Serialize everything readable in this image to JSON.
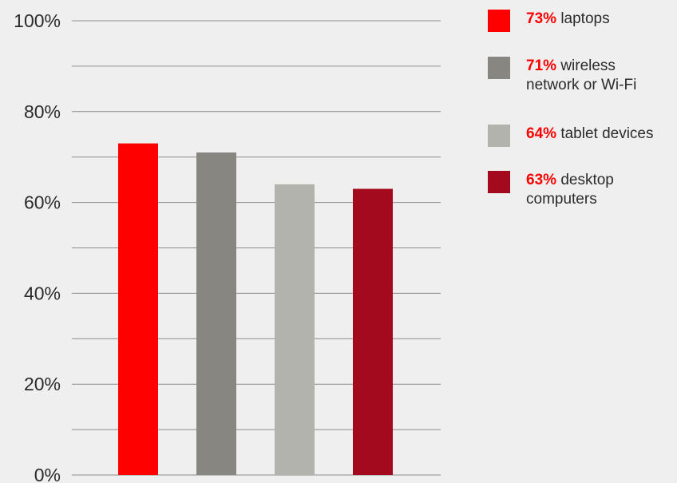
{
  "chart_data": {
    "type": "bar",
    "categories": [
      "laptops",
      "wireless network or Wi-Fi",
      "tablet devices",
      "desktop computers"
    ],
    "values": [
      73,
      71,
      64,
      63
    ],
    "ylim": [
      0,
      100
    ],
    "y_ticks": [
      {
        "value": 0,
        "label": "0%"
      },
      {
        "value": 20,
        "label": "20%"
      },
      {
        "value": 40,
        "label": "40%"
      },
      {
        "value": 60,
        "label": "60%"
      },
      {
        "value": 80,
        "label": "80%"
      },
      {
        "value": 100,
        "label": "100%"
      }
    ],
    "gridline_values": [
      0,
      10,
      20,
      30,
      40,
      50,
      60,
      70,
      80,
      90,
      100
    ],
    "colors": [
      "#ff0000",
      "#878680",
      "#b3b3ad",
      "#a30a1d"
    ],
    "legend": {
      "placement": "right",
      "entries": [
        {
          "pct": "73%",
          "label": "laptops"
        },
        {
          "pct": "71%",
          "label": "wireless network or Wi-Fi"
        },
        {
          "pct": "64%",
          "label": "tablet devices"
        },
        {
          "pct": "63%",
          "label": "desktop computers"
        }
      ]
    },
    "grid": true
  }
}
